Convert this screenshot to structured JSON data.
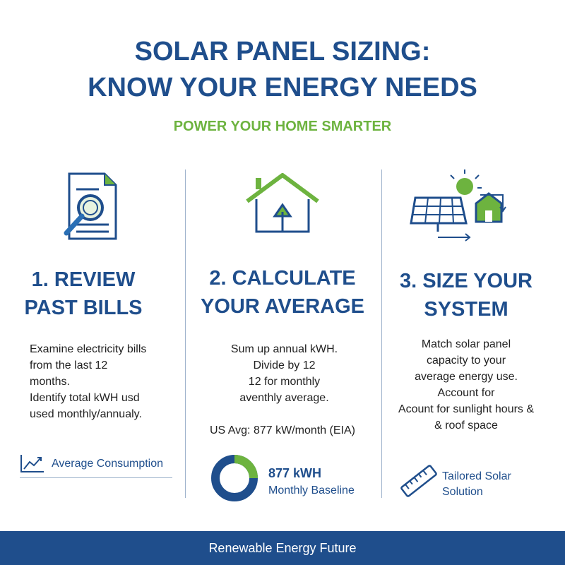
{
  "header": {
    "title": [
      "SOLAR PANEL SIZING:",
      "KNOW YOUR ENERGY NEEDS"
    ],
    "subtitle": "POWER YOUR HOME SMARTER"
  },
  "columns": [
    {
      "heading": [
        "1. REVIEW",
        "PAST BILLS"
      ],
      "body": [
        "Examine electricity bills",
        "from the last 12",
        "months.",
        "Identify total kWH usd",
        "used monthly/annualy."
      ],
      "footer": [
        "Average Consumption"
      ]
    },
    {
      "heading": [
        "2. CALCULATE",
        "YOUR AVERAGE"
      ],
      "body": [
        "Sum up annual kWH.",
        "Divide by 12",
        "12 for monthly",
        "aventhly average."
      ],
      "note": "US Avg: 877 kW/month (EIA)",
      "footer": [
        "877 kWH",
        "Monthly Baseline"
      ]
    },
    {
      "heading": [
        "3. SIZE YOUR",
        "SYSTEM"
      ],
      "body": [
        "Match solar panel",
        "capacity to your",
        "average energy use.",
        "Account for",
        "Acount for sunlight hours &",
        "& roof space"
      ],
      "footer": [
        "Tailored Solar",
        "Solution"
      ]
    }
  ],
  "footer": "Renewable Energy Future"
}
